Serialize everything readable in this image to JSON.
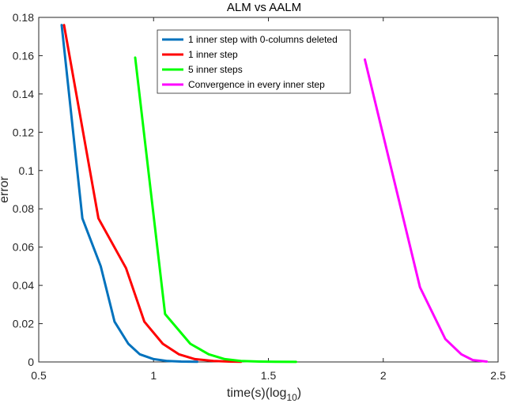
{
  "chart_data": {
    "type": "line",
    "title": "ALM vs AALM",
    "xlabel": "time(s)(log",
    "xlabel_sub": "10",
    "xlabel_close": ")",
    "ylabel": "error",
    "xlim": [
      0.5,
      2.5
    ],
    "ylim": [
      0,
      0.18
    ],
    "x_ticks": [
      "0.5",
      "1",
      "1.5",
      "2",
      "2.5"
    ],
    "x_tick_values": [
      0.5,
      1,
      1.5,
      2,
      2.5
    ],
    "y_ticks": [
      "0",
      "0.02",
      "0.04",
      "0.06",
      "0.08",
      "0.1",
      "0.12",
      "0.14",
      "0.16",
      "0.18"
    ],
    "y_tick_values": [
      0,
      0.02,
      0.04,
      0.06,
      0.08,
      0.1,
      0.12,
      0.14,
      0.16,
      0.18
    ],
    "grid": false,
    "legend_position": "top-center",
    "series": [
      {
        "name": "1 inner step with 0-columns deleted",
        "color": "#0072bd",
        "x": [
          0.6,
          0.69,
          0.77,
          0.83,
          0.89,
          0.94,
          1.0,
          1.06,
          1.12,
          1.19
        ],
        "y": [
          0.176,
          0.075,
          0.05,
          0.021,
          0.0095,
          0.004,
          0.0015,
          0.0005,
          0.0002,
          0.0001
        ]
      },
      {
        "name": "1 inner step",
        "color": "#ff0000",
        "x": [
          0.61,
          0.76,
          0.88,
          0.96,
          1.04,
          1.11,
          1.18,
          1.26,
          1.33,
          1.38
        ],
        "y": [
          0.176,
          0.075,
          0.049,
          0.021,
          0.0095,
          0.004,
          0.0015,
          0.0005,
          0.0002,
          0.0001
        ]
      },
      {
        "name": "5 inner steps",
        "color": "#00ff00",
        "x": [
          0.92,
          1.05,
          1.16,
          1.24,
          1.31,
          1.38,
          1.46,
          1.53,
          1.62
        ],
        "y": [
          0.159,
          0.025,
          0.0095,
          0.004,
          0.0015,
          0.0005,
          0.0002,
          0.0001,
          5e-05
        ]
      },
      {
        "name": "Convergence in every inner step",
        "color": "#ff00ff",
        "x": [
          1.92,
          2.16,
          2.27,
          2.34,
          2.39,
          2.45
        ],
        "y": [
          0.158,
          0.039,
          0.012,
          0.004,
          0.001,
          0.0002
        ]
      }
    ]
  }
}
